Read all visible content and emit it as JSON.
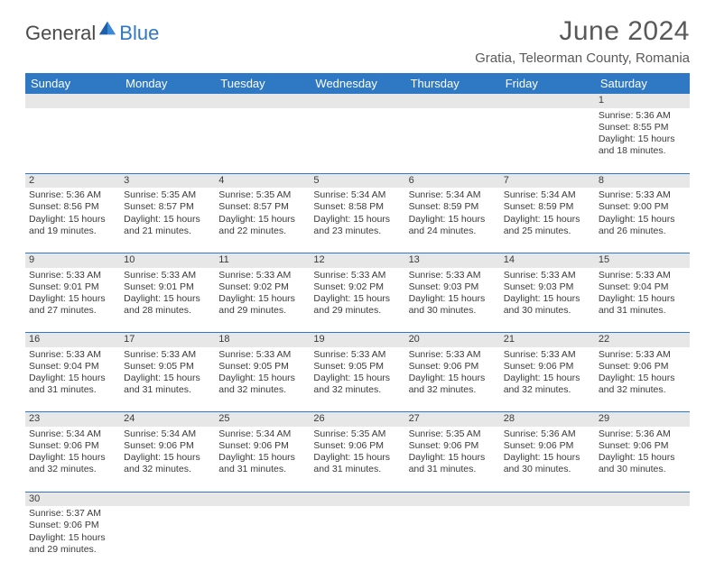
{
  "brand": {
    "part1": "General",
    "part2": "Blue"
  },
  "title": "June 2024",
  "location": "Gratia, Teleorman County, Romania",
  "colors": {
    "header_bg": "#2f78c4",
    "header_fg": "#ffffff",
    "daynum_bg": "#e7e7e7",
    "rule": "#2f78c4",
    "text": "#3a3a3a",
    "title_color": "#595959"
  },
  "day_headers": [
    "Sunday",
    "Monday",
    "Tuesday",
    "Wednesday",
    "Thursday",
    "Friday",
    "Saturday"
  ],
  "weeks": [
    [
      null,
      null,
      null,
      null,
      null,
      null,
      {
        "n": "1",
        "sr": "5:36 AM",
        "ss": "8:55 PM",
        "dl": "15 hours and 18 minutes."
      }
    ],
    [
      {
        "n": "2",
        "sr": "5:36 AM",
        "ss": "8:56 PM",
        "dl": "15 hours and 19 minutes."
      },
      {
        "n": "3",
        "sr": "5:35 AM",
        "ss": "8:57 PM",
        "dl": "15 hours and 21 minutes."
      },
      {
        "n": "4",
        "sr": "5:35 AM",
        "ss": "8:57 PM",
        "dl": "15 hours and 22 minutes."
      },
      {
        "n": "5",
        "sr": "5:34 AM",
        "ss": "8:58 PM",
        "dl": "15 hours and 23 minutes."
      },
      {
        "n": "6",
        "sr": "5:34 AM",
        "ss": "8:59 PM",
        "dl": "15 hours and 24 minutes."
      },
      {
        "n": "7",
        "sr": "5:34 AM",
        "ss": "8:59 PM",
        "dl": "15 hours and 25 minutes."
      },
      {
        "n": "8",
        "sr": "5:33 AM",
        "ss": "9:00 PM",
        "dl": "15 hours and 26 minutes."
      }
    ],
    [
      {
        "n": "9",
        "sr": "5:33 AM",
        "ss": "9:01 PM",
        "dl": "15 hours and 27 minutes."
      },
      {
        "n": "10",
        "sr": "5:33 AM",
        "ss": "9:01 PM",
        "dl": "15 hours and 28 minutes."
      },
      {
        "n": "11",
        "sr": "5:33 AM",
        "ss": "9:02 PM",
        "dl": "15 hours and 29 minutes."
      },
      {
        "n": "12",
        "sr": "5:33 AM",
        "ss": "9:02 PM",
        "dl": "15 hours and 29 minutes."
      },
      {
        "n": "13",
        "sr": "5:33 AM",
        "ss": "9:03 PM",
        "dl": "15 hours and 30 minutes."
      },
      {
        "n": "14",
        "sr": "5:33 AM",
        "ss": "9:03 PM",
        "dl": "15 hours and 30 minutes."
      },
      {
        "n": "15",
        "sr": "5:33 AM",
        "ss": "9:04 PM",
        "dl": "15 hours and 31 minutes."
      }
    ],
    [
      {
        "n": "16",
        "sr": "5:33 AM",
        "ss": "9:04 PM",
        "dl": "15 hours and 31 minutes."
      },
      {
        "n": "17",
        "sr": "5:33 AM",
        "ss": "9:05 PM",
        "dl": "15 hours and 31 minutes."
      },
      {
        "n": "18",
        "sr": "5:33 AM",
        "ss": "9:05 PM",
        "dl": "15 hours and 32 minutes."
      },
      {
        "n": "19",
        "sr": "5:33 AM",
        "ss": "9:05 PM",
        "dl": "15 hours and 32 minutes."
      },
      {
        "n": "20",
        "sr": "5:33 AM",
        "ss": "9:06 PM",
        "dl": "15 hours and 32 minutes."
      },
      {
        "n": "21",
        "sr": "5:33 AM",
        "ss": "9:06 PM",
        "dl": "15 hours and 32 minutes."
      },
      {
        "n": "22",
        "sr": "5:33 AM",
        "ss": "9:06 PM",
        "dl": "15 hours and 32 minutes."
      }
    ],
    [
      {
        "n": "23",
        "sr": "5:34 AM",
        "ss": "9:06 PM",
        "dl": "15 hours and 32 minutes."
      },
      {
        "n": "24",
        "sr": "5:34 AM",
        "ss": "9:06 PM",
        "dl": "15 hours and 32 minutes."
      },
      {
        "n": "25",
        "sr": "5:34 AM",
        "ss": "9:06 PM",
        "dl": "15 hours and 31 minutes."
      },
      {
        "n": "26",
        "sr": "5:35 AM",
        "ss": "9:06 PM",
        "dl": "15 hours and 31 minutes."
      },
      {
        "n": "27",
        "sr": "5:35 AM",
        "ss": "9:06 PM",
        "dl": "15 hours and 31 minutes."
      },
      {
        "n": "28",
        "sr": "5:36 AM",
        "ss": "9:06 PM",
        "dl": "15 hours and 30 minutes."
      },
      {
        "n": "29",
        "sr": "5:36 AM",
        "ss": "9:06 PM",
        "dl": "15 hours and 30 minutes."
      }
    ],
    [
      {
        "n": "30",
        "sr": "5:37 AM",
        "ss": "9:06 PM",
        "dl": "15 hours and 29 minutes."
      },
      null,
      null,
      null,
      null,
      null,
      null
    ]
  ],
  "labels": {
    "sunrise": "Sunrise: ",
    "sunset": "Sunset: ",
    "daylight": "Daylight: "
  }
}
